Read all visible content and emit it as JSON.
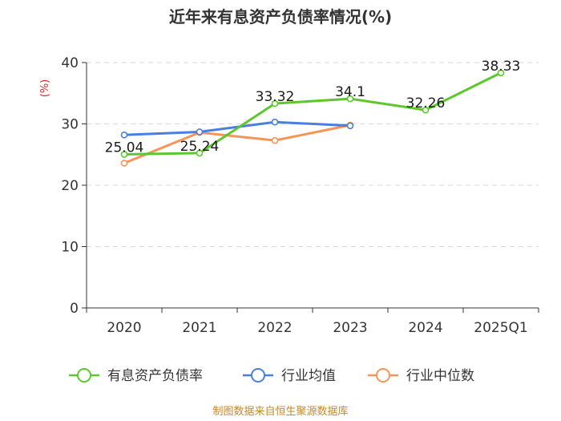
{
  "chart_data": {
    "type": "line",
    "title": "近年来有息资产负债率情况(%)",
    "ylabel": "(%)",
    "categories": [
      "2020",
      "2021",
      "2022",
      "2023",
      "2024",
      "2025Q1"
    ],
    "ylim": [
      0,
      40
    ],
    "yticks": [
      "0",
      "10",
      "20",
      "30",
      "40"
    ],
    "grid": true,
    "legend_position": "bottom",
    "series": [
      {
        "name": "有息资产负债率",
        "color": "#5cc72e",
        "values": [
          25.04,
          25.24,
          33.32,
          34.1,
          32.26,
          38.33
        ],
        "labels": [
          "25.04",
          "25.24",
          "33.32",
          "34.1",
          "32.26",
          "38.33"
        ]
      },
      {
        "name": "行业均值",
        "color": "#4a7fe0",
        "values": [
          28.2,
          28.7,
          30.3,
          29.7,
          null,
          null
        ]
      },
      {
        "name": "行业中位数",
        "color": "#f5955a",
        "values": [
          23.6,
          28.6,
          27.3,
          29.8,
          null,
          null
        ]
      }
    ]
  },
  "source": "制图数据来自恒生聚源数据库"
}
